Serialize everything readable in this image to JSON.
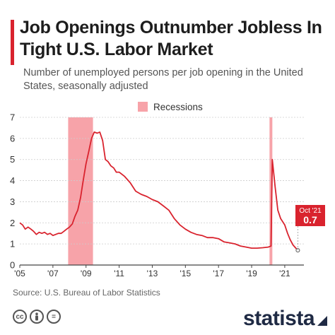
{
  "header": {
    "title": "Job Openings Outnumber Jobless In Tight U.S. Labor Market",
    "subtitle": "Number of unemployed persons per job opening in the United States, seasonally adjusted"
  },
  "legend": {
    "label": "Recessions",
    "color": "#f7a3a9"
  },
  "footer": {
    "source": "Source: U.S. Bureau of Labor Statistics",
    "brand": "statista",
    "license_icons": [
      "cc-icon",
      "person-icon",
      "equals-icon"
    ]
  },
  "colors": {
    "line": "#d9232e",
    "recession": "#f7a3a9",
    "accent": "#d9232e",
    "brand": "#1f2a44"
  },
  "chart_data": {
    "type": "line",
    "title": "Job Openings Outnumber Jobless In Tight U.S. Labor Market",
    "subtitle": "Number of unemployed persons per job opening in the United States, seasonally adjusted",
    "xlabel": "",
    "ylabel": "",
    "xlim": [
      2005,
      2021.9
    ],
    "ylim": [
      0,
      7
    ],
    "y_ticks": [
      0,
      1,
      2,
      3,
      4,
      5,
      6,
      7
    ],
    "x_ticks": [
      {
        "value": 2005,
        "label": "'05"
      },
      {
        "value": 2007,
        "label": "'07"
      },
      {
        "value": 2009,
        "label": "'09"
      },
      {
        "value": 2011,
        "label": "'11"
      },
      {
        "value": 2013,
        "label": "'13"
      },
      {
        "value": 2015,
        "label": "'15"
      },
      {
        "value": 2017,
        "label": "'17"
      },
      {
        "value": 2019,
        "label": "'19"
      },
      {
        "value": 2021,
        "label": "'21"
      }
    ],
    "grid": "horizontal",
    "recessions": [
      {
        "start": 2007.92,
        "end": 2009.42
      },
      {
        "start": 2020.08,
        "end": 2020.25
      }
    ],
    "annotation": {
      "date": "Oct '21",
      "value": 0.7
    },
    "series": [
      {
        "values": [
          [
            2005.0,
            2.0
          ],
          [
            2005.17,
            1.9
          ],
          [
            2005.33,
            1.7
          ],
          [
            2005.5,
            1.8
          ],
          [
            2005.67,
            1.7
          ],
          [
            2005.83,
            1.6
          ],
          [
            2006.0,
            1.45
          ],
          [
            2006.17,
            1.55
          ],
          [
            2006.33,
            1.5
          ],
          [
            2006.5,
            1.55
          ],
          [
            2006.67,
            1.45
          ],
          [
            2006.83,
            1.5
          ],
          [
            2007.0,
            1.4
          ],
          [
            2007.17,
            1.45
          ],
          [
            2007.33,
            1.5
          ],
          [
            2007.5,
            1.5
          ],
          [
            2007.67,
            1.6
          ],
          [
            2007.83,
            1.7
          ],
          [
            2008.0,
            1.8
          ],
          [
            2008.17,
            1.95
          ],
          [
            2008.33,
            2.3
          ],
          [
            2008.5,
            2.6
          ],
          [
            2008.67,
            3.2
          ],
          [
            2008.83,
            4.0
          ],
          [
            2009.0,
            4.8
          ],
          [
            2009.17,
            5.4
          ],
          [
            2009.33,
            6.0
          ],
          [
            2009.5,
            6.3
          ],
          [
            2009.67,
            6.25
          ],
          [
            2009.83,
            6.3
          ],
          [
            2010.0,
            5.9
          ],
          [
            2010.17,
            5.0
          ],
          [
            2010.33,
            4.9
          ],
          [
            2010.5,
            4.7
          ],
          [
            2010.67,
            4.6
          ],
          [
            2010.83,
            4.4
          ],
          [
            2011.0,
            4.4
          ],
          [
            2011.33,
            4.2
          ],
          [
            2011.67,
            3.9
          ],
          [
            2012.0,
            3.5
          ],
          [
            2012.33,
            3.35
          ],
          [
            2012.67,
            3.25
          ],
          [
            2013.0,
            3.1
          ],
          [
            2013.33,
            3.0
          ],
          [
            2013.67,
            2.8
          ],
          [
            2014.0,
            2.6
          ],
          [
            2014.33,
            2.2
          ],
          [
            2014.67,
            1.9
          ],
          [
            2015.0,
            1.7
          ],
          [
            2015.33,
            1.55
          ],
          [
            2015.67,
            1.45
          ],
          [
            2016.0,
            1.4
          ],
          [
            2016.33,
            1.3
          ],
          [
            2016.67,
            1.3
          ],
          [
            2017.0,
            1.25
          ],
          [
            2017.33,
            1.1
          ],
          [
            2017.67,
            1.05
          ],
          [
            2018.0,
            1.0
          ],
          [
            2018.33,
            0.9
          ],
          [
            2018.67,
            0.85
          ],
          [
            2019.0,
            0.8
          ],
          [
            2019.33,
            0.8
          ],
          [
            2019.67,
            0.82
          ],
          [
            2020.0,
            0.85
          ],
          [
            2020.17,
            0.9
          ],
          [
            2020.25,
            5.0
          ],
          [
            2020.42,
            3.7
          ],
          [
            2020.58,
            2.6
          ],
          [
            2020.75,
            2.2
          ],
          [
            2021.0,
            1.9
          ],
          [
            2021.17,
            1.5
          ],
          [
            2021.33,
            1.2
          ],
          [
            2021.5,
            0.95
          ],
          [
            2021.67,
            0.8
          ],
          [
            2021.79,
            0.7
          ]
        ]
      }
    ]
  }
}
